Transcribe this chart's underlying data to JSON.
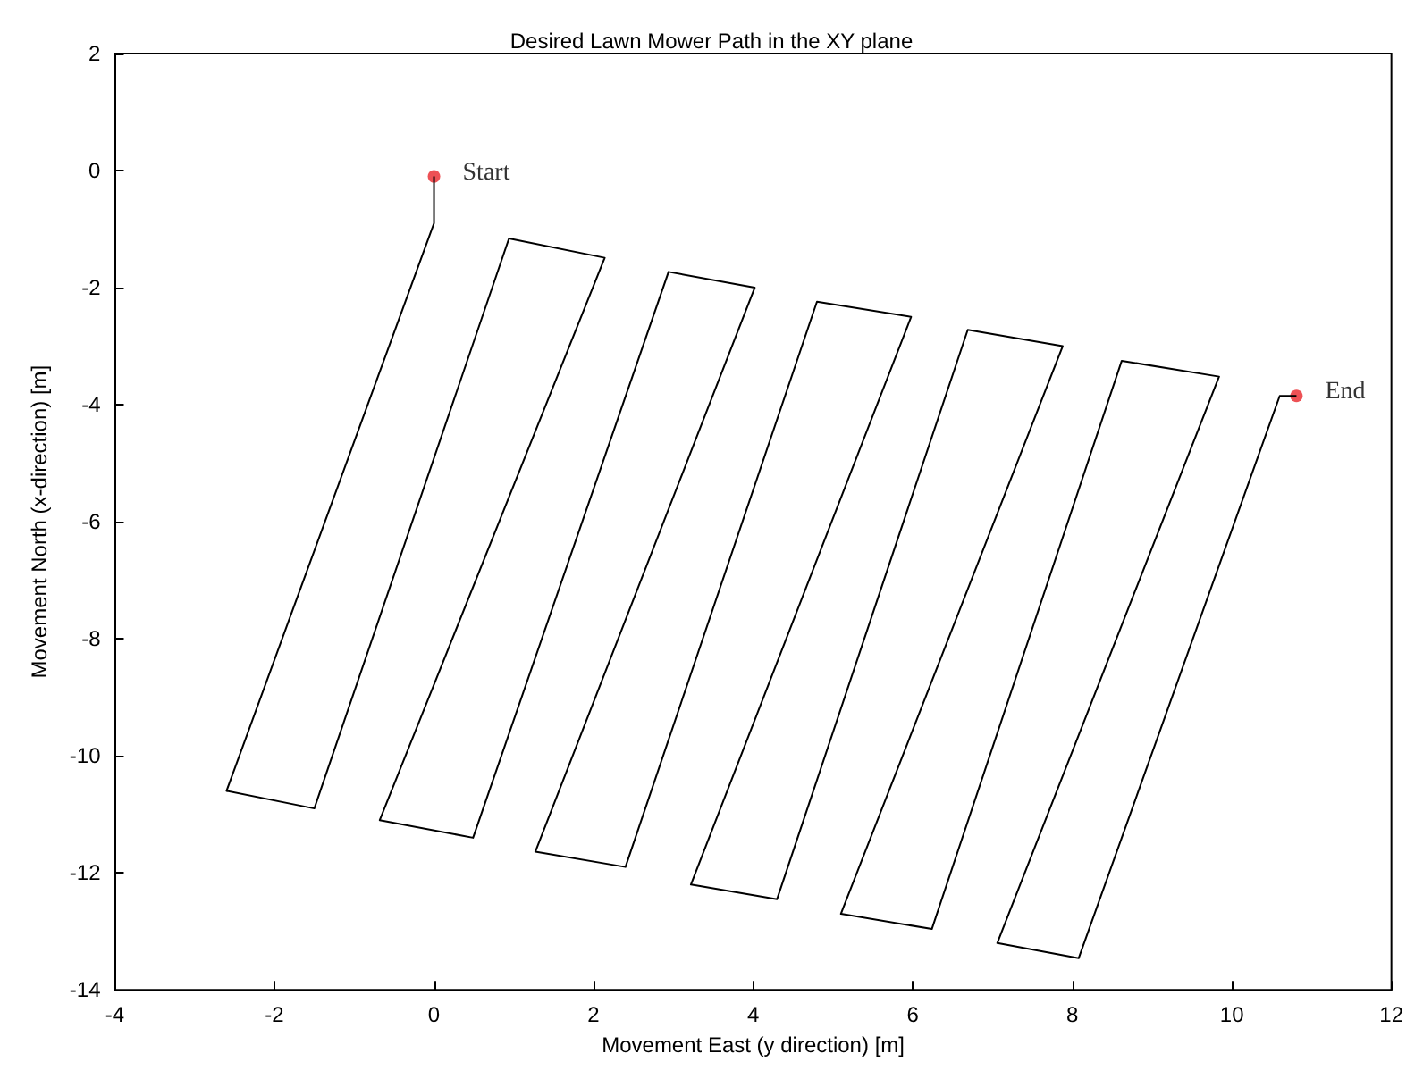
{
  "chart_data": {
    "type": "line",
    "title": "Desired Lawn Mower Path in the XY plane",
    "xlabel": "Movement East (y direction) [m]",
    "ylabel": "Movement North (x-direction) [m]",
    "xlim": [
      -4,
      12
    ],
    "xticks": [
      -4,
      -2,
      0,
      2,
      4,
      6,
      8,
      10,
      12
    ],
    "ylim": [
      -14,
      2
    ],
    "yticks": [
      -14,
      -12,
      -10,
      -8,
      -6,
      -4,
      -2,
      0,
      2
    ],
    "grid": false,
    "series": [
      {
        "color": "#000000",
        "marker": "none",
        "x": [
          0,
          0,
          -2.6,
          -1.5,
          0.94,
          2.14,
          -0.68,
          0.49,
          2.94,
          4.02,
          1.27,
          2.4,
          4.8,
          5.98,
          3.22,
          4.3,
          6.69,
          7.88,
          5.1,
          6.24,
          8.62,
          9.84,
          7.06,
          8.08,
          10.6,
          10.81
        ],
        "values": [
          -0.1,
          -0.9,
          -10.6,
          -10.9,
          -1.16,
          -1.49,
          -11.1,
          -11.4,
          -1.73,
          -2.0,
          -11.64,
          -11.9,
          -2.24,
          -2.5,
          -12.2,
          -12.45,
          -2.72,
          -3.0,
          -12.7,
          -12.96,
          -3.25,
          -3.52,
          -13.2,
          -13.46,
          -3.85,
          -3.85
        ]
      },
      {
        "type": "scatter",
        "color": "#e8262a",
        "marker": "circle",
        "x": [
          0,
          10.81
        ],
        "values": [
          -0.1,
          -3.85
        ]
      }
    ],
    "annotations": [
      {
        "text": "Start",
        "x": 0,
        "y": -0.1
      },
      {
        "text": "End",
        "x": 10.81,
        "y": -3.85
      }
    ]
  }
}
